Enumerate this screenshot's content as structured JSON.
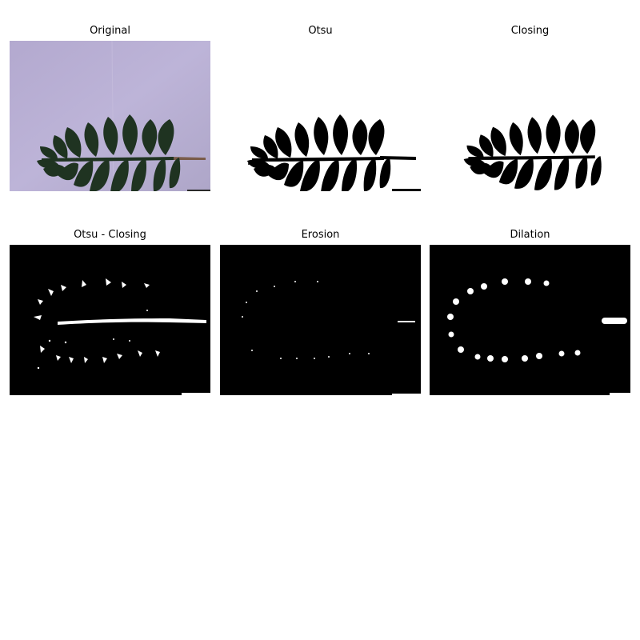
{
  "panels": [
    {
      "id": "original",
      "title": "Original"
    },
    {
      "id": "otsu",
      "title": "Otsu"
    },
    {
      "id": "closing",
      "title": "Closing"
    },
    {
      "id": "otsu-minus-closing",
      "title": "Otsu - Closing"
    },
    {
      "id": "erosion",
      "title": "Erosion"
    },
    {
      "id": "dilation",
      "title": "Dilation"
    }
  ],
  "colors": {
    "paper_background": "#b7aed2",
    "leaf": "#1f3321",
    "stem": "#7a5c4a",
    "mask_black": "#000000",
    "mask_white": "#ffffff"
  }
}
